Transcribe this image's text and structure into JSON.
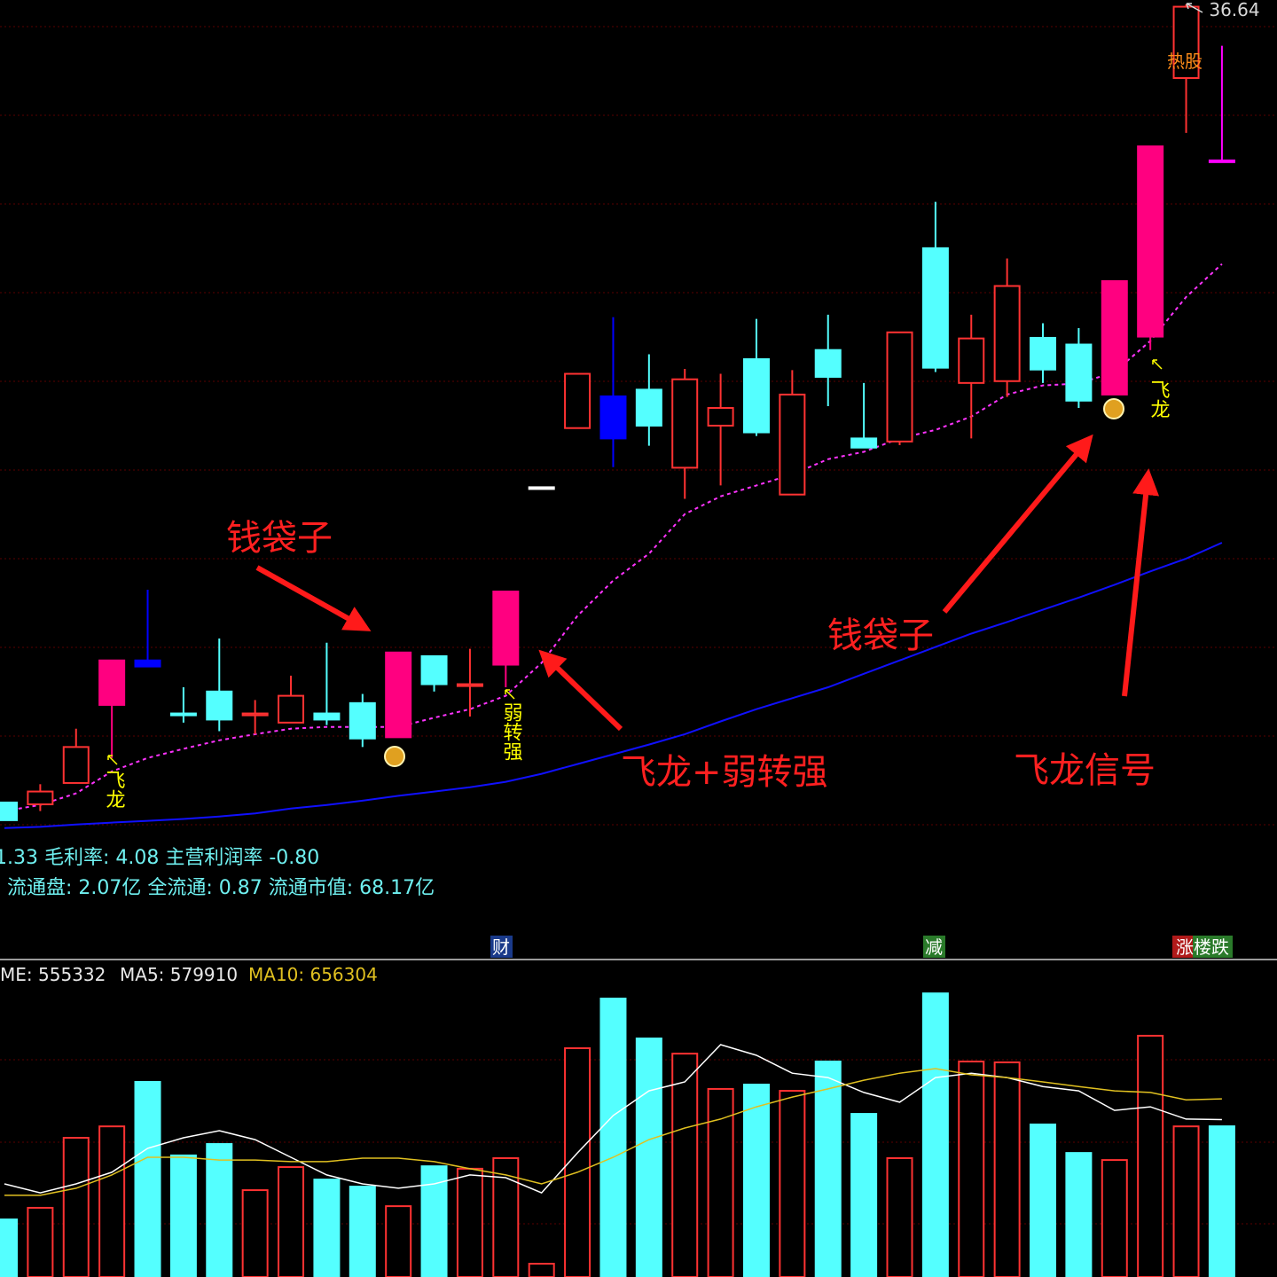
{
  "chart_data": [
    {
      "type": "candlestick",
      "open": [
        23.55,
        23.52,
        23.87,
        25.15,
        25.88,
        25.01,
        25.37,
        24.98,
        24.86,
        25.01,
        25.18,
        24.62,
        25.95,
        25.46,
        25.81,
        28.72,
        29.69,
        30.21,
        30.32,
        29.04,
        29.73,
        30.82,
        28.6,
        30.97,
        29.52,
        29.47,
        32.64,
        30.43,
        30.46,
        31.17,
        31.06,
        30.24,
        31.19,
        35.43,
        34.08
      ],
      "high": [
        23.55,
        23.85,
        24.76,
        25.88,
        27.04,
        25.44,
        26.24,
        25.23,
        25.63,
        26.17,
        25.33,
        26.01,
        25.95,
        26.07,
        27.01,
        28.72,
        30.58,
        31.51,
        30.9,
        30.66,
        30.58,
        31.48,
        30.64,
        31.55,
        30.43,
        31.26,
        33.4,
        31.55,
        32.47,
        31.41,
        31.33,
        32.1,
        34.31,
        36.64,
        35.96
      ],
      "low": [
        23.26,
        23.41,
        23.87,
        24.28,
        25.78,
        24.86,
        24.72,
        24.67,
        24.86,
        24.82,
        24.46,
        24.62,
        25.37,
        24.96,
        25.44,
        28.72,
        29.69,
        29.05,
        29.4,
        28.53,
        28.75,
        29.56,
        28.6,
        30.05,
        29.37,
        29.41,
        30.61,
        29.52,
        30.2,
        30.43,
        30.02,
        30.24,
        30.97,
        34.53,
        34.07
      ],
      "close": [
        23.26,
        23.73,
        24.46,
        25.88,
        25.78,
        24.98,
        24.91,
        25.01,
        25.3,
        24.91,
        24.6,
        26.01,
        25.49,
        25.49,
        27.01,
        28.72,
        30.58,
        29.52,
        29.73,
        30.49,
        30.02,
        29.62,
        30.24,
        30.53,
        29.37,
        31.26,
        30.68,
        31.16,
        32.02,
        30.65,
        30.14,
        32.1,
        34.31,
        36.6,
        34.07
      ],
      "colors": [
        "#54ffff",
        "#ff3232",
        "#ff3232",
        "#ff0080",
        "#0000ff",
        "#54ffff",
        "#54ffff",
        "#ff3232",
        "#ff3232",
        "#54ffff",
        "#54ffff",
        "#ff0080",
        "#54ffff",
        "#ff3232",
        "#ff0080",
        "#ffffff",
        "#ff3232",
        "#0000ff",
        "#54ffff",
        "#ff3232",
        "#ff3232",
        "#54ffff",
        "#ff3232",
        "#54ffff",
        "#54ffff",
        "#ff3232",
        "#54ffff",
        "#ff3232",
        "#ff3232",
        "#54ffff",
        "#54ffff",
        "#ff0080",
        "#ff0080",
        "#ff3232",
        "#ff00ff"
      ],
      "up_color": "#ff3232",
      "ylim": [
        23.04,
        36.71
      ],
      "lines": [
        {
          "color": "#ff33ff",
          "dash": true,
          "values": [
            23.41,
            23.51,
            23.7,
            24.06,
            24.28,
            24.43,
            24.57,
            24.67,
            24.76,
            24.79,
            24.79,
            24.79,
            24.94,
            25.08,
            25.3,
            25.84,
            26.61,
            27.19,
            27.63,
            28.28,
            28.57,
            28.75,
            28.93,
            29.18,
            29.3,
            29.52,
            29.66,
            29.88,
            30.24,
            30.39,
            30.42,
            30.61,
            31.12,
            31.84,
            32.38
          ]
        },
        {
          "color": "#1010ff",
          "dash": false,
          "values": [
            23.13,
            23.15,
            23.19,
            23.22,
            23.25,
            23.28,
            23.32,
            23.37,
            23.45,
            23.51,
            23.58,
            23.66,
            23.73,
            23.8,
            23.89,
            24.02,
            24.18,
            24.34,
            24.5,
            24.67,
            24.88,
            25.08,
            25.26,
            25.44,
            25.66,
            25.88,
            26.1,
            26.32,
            26.51,
            26.71,
            26.91,
            27.12,
            27.34,
            27.55,
            27.81
          ]
        }
      ],
      "high_label": "36.64",
      "tag": "热股"
    },
    {
      "type": "bar",
      "values": [
        212000,
        255000,
        513000,
        555000,
        719000,
        448000,
        490000,
        320000,
        405000,
        359000,
        333000,
        261000,
        408000,
        399000,
        438000,
        49000,
        843000,
        1026000,
        879000,
        823000,
        693000,
        709000,
        686000,
        794000,
        601000,
        438000,
        1045000,
        794000,
        791000,
        562000,
        457000,
        431000,
        889000,
        555000,
        555332
      ],
      "up_color": "#ff3232",
      "down_color": "#54ffff",
      "ylim": [
        0,
        1160000
      ],
      "lines": [
        {
          "color": "#ffffff",
          "values": [
            343000,
            310000,
            343000,
            386000,
            474000,
            513000,
            539000,
            506000,
            441000,
            376000,
            343000,
            327000,
            343000,
            376000,
            366000,
            310000,
            457000,
            595000,
            686000,
            719000,
            856000,
            817000,
            751000,
            735000,
            680000,
            644000,
            735000,
            751000,
            735000,
            702000,
            686000,
            614000,
            627000,
            582000,
            579910
          ]
        },
        {
          "color": "#e0c020",
          "values": [
            301000,
            301000,
            327000,
            376000,
            441000,
            441000,
            431000,
            431000,
            425000,
            425000,
            438000,
            438000,
            425000,
            399000,
            376000,
            343000,
            386000,
            441000,
            506000,
            549000,
            582000,
            627000,
            663000,
            693000,
            725000,
            751000,
            768000,
            745000,
            735000,
            719000,
            702000,
            686000,
            680000,
            653000,
            656304
          ]
        }
      ],
      "legend": [
        "ME: 555332",
        "MA5: 579910",
        "MA10: 656304"
      ]
    }
  ],
  "annotations": [
    "钱袋子",
    "飞龙+弱转强",
    "钱袋子",
    "飞龙信号"
  ],
  "signals": [
    "飞龙",
    "弱转强",
    "飞龙"
  ],
  "info": [
    "1.33 毛利率: 4.08 主营利润率 -0.80",
    "流通盘: 2.07亿 全流通: 0.87 流通市值: 68.17亿"
  ],
  "markers": [
    "财",
    "减",
    "涨楼跌"
  ]
}
